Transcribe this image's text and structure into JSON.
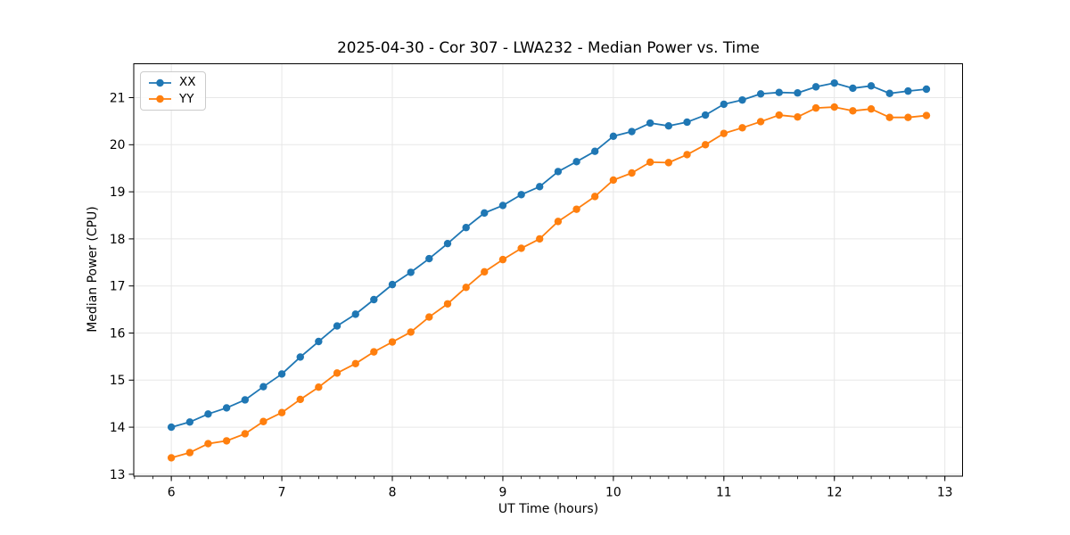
{
  "chart_data": {
    "type": "line",
    "title": "2025-04-30 - Cor 307 - LWA232 - Median Power vs. Time",
    "xlabel": "UT Time (hours)",
    "ylabel": "Median Power (CPU)",
    "xlim": [
      5.66,
      13.16
    ],
    "ylim": [
      12.96,
      21.72
    ],
    "x_ticks": [
      6,
      7,
      8,
      9,
      10,
      11,
      12,
      13
    ],
    "y_ticks": [
      13,
      14,
      15,
      16,
      17,
      18,
      19,
      20,
      21
    ],
    "x_minor_interval": 0.16667,
    "grid": true,
    "legend_position": "upper left",
    "x": [
      6.0,
      6.167,
      6.333,
      6.5,
      6.667,
      6.833,
      7.0,
      7.167,
      7.333,
      7.5,
      7.667,
      7.833,
      8.0,
      8.167,
      8.333,
      8.5,
      8.667,
      8.833,
      9.0,
      9.167,
      9.333,
      9.5,
      9.667,
      9.833,
      10.0,
      10.167,
      10.333,
      10.5,
      10.667,
      10.833,
      11.0,
      11.167,
      11.333,
      11.5,
      11.667,
      11.833,
      12.0,
      12.167,
      12.333,
      12.5,
      12.667,
      12.833
    ],
    "series": [
      {
        "name": "XX",
        "color": "#1f77b4",
        "values": [
          14.0,
          14.11,
          14.28,
          14.41,
          14.58,
          14.86,
          15.13,
          15.49,
          15.82,
          16.15,
          16.4,
          16.71,
          17.03,
          17.29,
          17.58,
          17.9,
          18.24,
          18.55,
          18.71,
          18.94,
          19.11,
          19.43,
          19.64,
          19.86,
          20.18,
          20.28,
          20.46,
          20.4,
          20.48,
          20.63,
          20.86,
          20.95,
          21.08,
          21.11,
          21.1,
          21.23,
          21.31,
          21.2,
          21.25,
          21.09,
          21.14,
          21.18
        ]
      },
      {
        "name": "YY",
        "color": "#ff7f0e",
        "values": [
          13.35,
          13.46,
          13.65,
          13.71,
          13.86,
          14.12,
          14.31,
          14.59,
          14.85,
          15.15,
          15.35,
          15.6,
          15.81,
          16.02,
          16.34,
          16.62,
          16.97,
          17.3,
          17.56,
          17.8,
          18.0,
          18.37,
          18.63,
          18.9,
          19.25,
          19.4,
          19.63,
          19.62,
          19.79,
          20.0,
          20.24,
          20.36,
          20.49,
          20.63,
          20.59,
          20.78,
          20.8,
          20.72,
          20.76,
          20.58,
          20.58,
          20.62
        ]
      }
    ],
    "style": {
      "grid_color": "#e7e7e7",
      "spine_color": "#000000",
      "tick_label_size": 13.9,
      "line_width": 1.8,
      "marker_radius": 4.2
    }
  }
}
